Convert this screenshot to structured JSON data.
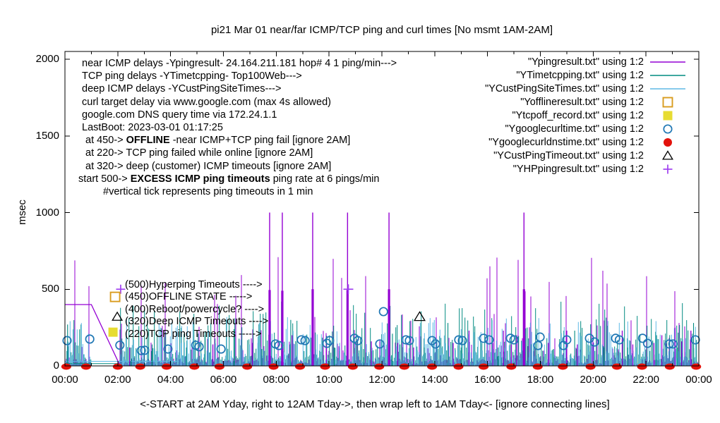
{
  "title": "pi21 Mar 01  near/far ICMP/TCP ping and curl times [No msmt 1AM-2AM]",
  "ylabel": "msec",
  "caption": "<-START at 2AM Yday, right to 12AM Tday->, then wrap left to 1AM Tday<- [ignore connecting lines]",
  "left_notes": [
    {
      "x": 116,
      "segments": [
        {
          "text": "near ICMP delays -Ypingresult- 24.164.211.181 hop# 4 1 ping/min--->"
        }
      ]
    },
    {
      "x": 116,
      "segments": [
        {
          "text": "TCP ping delays -YTimetcpping- Top100Web--->"
        }
      ]
    },
    {
      "x": 116,
      "segments": [
        {
          "text": "deep ICMP delays -YCustPingSiteTimes--->"
        }
      ]
    },
    {
      "x": 116,
      "segments": [
        {
          "text": "curl target delay via www.google.com (max 4s allowed)"
        }
      ]
    },
    {
      "x": 116,
      "segments": [
        {
          "text": "google.com DNS query time via 172.24.1.1"
        }
      ]
    },
    {
      "x": 116,
      "segments": [
        {
          "text": "LastBoot: 2023-03-01 01:17:25"
        }
      ]
    },
    {
      "x": 121,
      "segments": [
        {
          "text": "at 450->  "
        },
        {
          "text": "OFFLINE",
          "b": true
        },
        {
          "text": " -near ICMP+TCP ping fail [ignore 2AM]"
        }
      ]
    },
    {
      "x": 121,
      "segments": [
        {
          "text": "at 220-> TCP ping failed while online [ignore 2AM]"
        }
      ]
    },
    {
      "x": 121,
      "segments": [
        {
          "text": "at 320-> deep (customer) ICMP timeouts [ignore 2AM]"
        }
      ]
    },
    {
      "x": 111,
      "segments": [
        {
          "text": "start 500->  "
        },
        {
          "text": "EXCESS ICMP ping timeouts",
          "b": true
        },
        {
          "text": " ping rate at 6 pings/min"
        }
      ]
    },
    {
      "x": 146,
      "segments": [
        {
          "text": "#vertical tick represents ping timeouts in 1 min"
        }
      ]
    }
  ],
  "mid_annotations": [
    {
      "text": "(500)Hyperping Timeouts ---->",
      "marker": {
        "type": "plus",
        "t": 2.11,
        "v": 500,
        "color": "#a040f0"
      }
    },
    {
      "text": "(450)OFFLINE STATE ----->",
      "marker": {
        "type": "open-square",
        "t": 1.9,
        "v": 450,
        "color": "#d99c1e"
      }
    },
    {
      "text": "(400)Reboot/powercycle? ---->",
      "marker": null
    },
    {
      "text": "(320)Deep ICMP Timeouts ---->",
      "marker": {
        "type": "open-triangle",
        "t": 1.98,
        "v": 320,
        "color": "#000000"
      }
    },
    {
      "text": "(220)TCP ping Timeouts ----->",
      "marker": {
        "type": "filled-square",
        "t": 1.82,
        "v": 220,
        "color": "#e7dc32"
      }
    }
  ],
  "legend": [
    {
      "label": "\"Ypingresult.txt\" using 1:2",
      "marker": "line",
      "color": "#9400d3"
    },
    {
      "label": "\"YTimetcpping.txt\" using 1:2",
      "marker": "line",
      "color": "#008b80"
    },
    {
      "label": "\"YCustPingSiteTimes.txt\" using 1:2",
      "marker": "line",
      "color": "#5fb9e6"
    },
    {
      "label": "\"Yofflineresult.txt\" using 1:2",
      "marker": "open-square",
      "color": "#d99c1e"
    },
    {
      "label": "\"Ytcpoff_record.txt\" using 1:2",
      "marker": "filled-square",
      "color": "#e7dc32"
    },
    {
      "label": "\"Ygooglecurltime.txt\" using 1:2",
      "marker": "open-circle",
      "color": "#1f77b4"
    },
    {
      "label": "\"Ygooglecurldnstime.txt\" using 1:2",
      "marker": "filled-circle",
      "color": "#e3120b"
    },
    {
      "label": "\"YCustPingTimeout.txt\" using 1:2",
      "marker": "open-triangle",
      "color": "#000000"
    },
    {
      "label": "\"YHPpingresult.txt\" using 1:2",
      "marker": "plus",
      "color": "#a040f0"
    }
  ],
  "chart_data": {
    "type": "line",
    "title": "pi21 Mar 01  near/far ICMP/TCP ping and curl times [No msmt 1AM-2AM]",
    "xlabel": "<-START at 2AM Yday, right to 12AM Tday->, then wrap left to 1AM Tday<- [ignore connecting lines]",
    "ylabel": "msec",
    "ylim": [
      0,
      2000
    ],
    "y_ticks": [
      0,
      500,
      1000,
      1500,
      2000
    ],
    "x_ticks": [
      {
        "h": 0,
        "label": "00:00"
      },
      {
        "h": 2,
        "label": "02:00"
      },
      {
        "h": 4,
        "label": "04:00"
      },
      {
        "h": 6,
        "label": "06:00"
      },
      {
        "h": 8,
        "label": "08:00"
      },
      {
        "h": 10,
        "label": "10:00"
      },
      {
        "h": 12,
        "label": "12:00"
      },
      {
        "h": 14,
        "label": "14:00"
      },
      {
        "h": 16,
        "label": "16:00"
      },
      {
        "h": 18,
        "label": "18:00"
      },
      {
        "h": 20,
        "label": "20:00"
      },
      {
        "h": 22,
        "label": "22:00"
      },
      {
        "h": 24,
        "label": "00:00"
      }
    ],
    "no_measurement_gap_hours": [
      1.0,
      2.05
    ],
    "series": [
      {
        "name": "Ypingresult.txt",
        "style": "impulses",
        "color": "#9400d3",
        "noise_max": 150,
        "offline_plateau": [
          [
            0,
            400
          ],
          [
            1.0,
            400
          ],
          [
            2.05,
            15
          ]
        ],
        "timeout_spikes": [
          [
            7.75,
            1000,
            495
          ],
          [
            8.23,
            1000,
            490
          ],
          [
            9.38,
            1000,
            500
          ],
          [
            10.7,
            1000,
            495
          ],
          [
            12.27,
            1000,
            500
          ],
          [
            17.38,
            1000,
            500
          ]
        ],
        "minor_spikes": [
          [
            2.45,
            120
          ],
          [
            5.6,
            140
          ],
          [
            7.1,
            150
          ],
          [
            8.6,
            200
          ],
          [
            9.9,
            130
          ],
          [
            11.6,
            160
          ],
          [
            12.6,
            150
          ],
          [
            13.2,
            120
          ],
          [
            14.7,
            150
          ],
          [
            15.3,
            230
          ],
          [
            16.2,
            150
          ],
          [
            16.6,
            230
          ],
          [
            16.9,
            140
          ],
          [
            17.1,
            200
          ],
          [
            18.3,
            150
          ],
          [
            19.0,
            230
          ],
          [
            19.4,
            140
          ],
          [
            20.0,
            150
          ],
          [
            21.1,
            230
          ],
          [
            21.5,
            140
          ],
          [
            22.3,
            150
          ],
          [
            22.6,
            200
          ],
          [
            23.1,
            250
          ],
          [
            23.35,
            160
          ],
          [
            23.7,
            230
          ]
        ]
      },
      {
        "name": "YTimetcpping.txt",
        "style": "impulses",
        "color": "#008b80",
        "noise_max": 80,
        "flat_line": {
          "from": 0,
          "to": 2.05,
          "v": 15
        },
        "spikes": [
          [
            0.1,
            270
          ],
          [
            2.5,
            120
          ],
          [
            3.3,
            140
          ],
          [
            4.6,
            120
          ],
          [
            5.3,
            200
          ],
          [
            6.4,
            240
          ],
          [
            7.45,
            110
          ],
          [
            8.55,
            300
          ],
          [
            10.2,
            120
          ],
          [
            11.3,
            110
          ],
          [
            12.4,
            210
          ],
          [
            13.6,
            120
          ],
          [
            14.5,
            280
          ],
          [
            15.0,
            120
          ],
          [
            16.4,
            120
          ],
          [
            17.5,
            250
          ],
          [
            18.5,
            110
          ],
          [
            19.3,
            230
          ],
          [
            20.4,
            120
          ],
          [
            21.3,
            120
          ],
          [
            22.4,
            200
          ],
          [
            23.2,
            120
          ],
          [
            23.8,
            280
          ]
        ]
      },
      {
        "name": "YCustPingSiteTimes.txt",
        "style": "impulses",
        "color": "#5fb9e6",
        "noise_max": 60,
        "flat_line": {
          "from": 0,
          "to": 4.3,
          "v": 30
        },
        "spikes": [
          [
            0.3,
            90
          ],
          [
            2.2,
            100
          ],
          [
            3.4,
            80
          ],
          [
            4.4,
            150
          ],
          [
            5.5,
            90
          ],
          [
            6.3,
            100
          ],
          [
            7.3,
            150
          ],
          [
            8.3,
            90
          ],
          [
            9.5,
            80
          ],
          [
            10.4,
            150
          ],
          [
            11.5,
            90
          ],
          [
            12.5,
            80
          ],
          [
            13.4,
            90
          ],
          [
            14.3,
            80
          ],
          [
            15.5,
            90
          ],
          [
            16.5,
            80
          ],
          [
            17.6,
            90
          ],
          [
            18.4,
            80
          ],
          [
            19.5,
            90
          ],
          [
            20.5,
            80
          ],
          [
            21.6,
            90
          ],
          [
            22.5,
            80
          ],
          [
            23.5,
            90
          ]
        ]
      },
      {
        "name": "Yofflineresult.txt",
        "style": "points",
        "marker": "open-square",
        "color": "#d99c1e",
        "points": []
      },
      {
        "name": "Ytcpoff_record.txt",
        "style": "points",
        "marker": "filled-square",
        "color": "#e7dc32",
        "points": []
      },
      {
        "name": "Ygooglecurltime.txt",
        "style": "points",
        "marker": "open-circle",
        "color": "#1f77b4",
        "points": [
          [
            0.08,
            165
          ],
          [
            0.94,
            175
          ],
          [
            2.08,
            135
          ],
          [
            2.89,
            100
          ],
          [
            3.02,
            102
          ],
          [
            3.9,
            110
          ],
          [
            4.95,
            135
          ],
          [
            5.08,
            125
          ],
          [
            5.91,
            110
          ],
          [
            7.97,
            143
          ],
          [
            8.1,
            133
          ],
          [
            8.95,
            170
          ],
          [
            9.09,
            165
          ],
          [
            9.92,
            147
          ],
          [
            10.02,
            165
          ],
          [
            10.96,
            180
          ],
          [
            11.09,
            165
          ],
          [
            11.92,
            143
          ],
          [
            12.06,
            354
          ],
          [
            12.91,
            170
          ],
          [
            13.04,
            165
          ],
          [
            13.9,
            165
          ],
          [
            14.03,
            143
          ],
          [
            14.91,
            170
          ],
          [
            15.05,
            165
          ],
          [
            15.85,
            180
          ],
          [
            16.06,
            170
          ],
          [
            16.87,
            180
          ],
          [
            17.0,
            170
          ],
          [
            17.91,
            133
          ],
          [
            17.99,
            188
          ],
          [
            18.87,
            133
          ],
          [
            19.0,
            170
          ],
          [
            19.86,
            180
          ],
          [
            20.05,
            156
          ],
          [
            20.85,
            180
          ],
          [
            20.99,
            170
          ],
          [
            21.87,
            180
          ],
          [
            22.06,
            147
          ],
          [
            22.88,
            143
          ],
          [
            23.02,
            143
          ],
          [
            23.87,
            170
          ]
        ]
      },
      {
        "name": "Ygooglecurldnstime.txt",
        "style": "points",
        "marker": "filled-circle",
        "color": "#e3120b",
        "value_msec": 5,
        "times": [
          0.05,
          0.8,
          2.0,
          2.85,
          3.85,
          4.9,
          5.85,
          6.9,
          7.9,
          8.9,
          9.85,
          10.9,
          11.9,
          12.85,
          13.9,
          14.9,
          15.85,
          16.9,
          17.9,
          18.85,
          19.9,
          20.9,
          21.85,
          22.9,
          23.9
        ]
      },
      {
        "name": "YCustPingTimeout.txt",
        "style": "points",
        "marker": "open-triangle",
        "color": "#000000",
        "points": [
          [
            13.43,
            320
          ]
        ]
      },
      {
        "name": "YHPpingresult.txt",
        "style": "points",
        "marker": "plus",
        "color": "#a040f0",
        "points": [
          [
            10.73,
            500
          ]
        ]
      }
    ]
  }
}
